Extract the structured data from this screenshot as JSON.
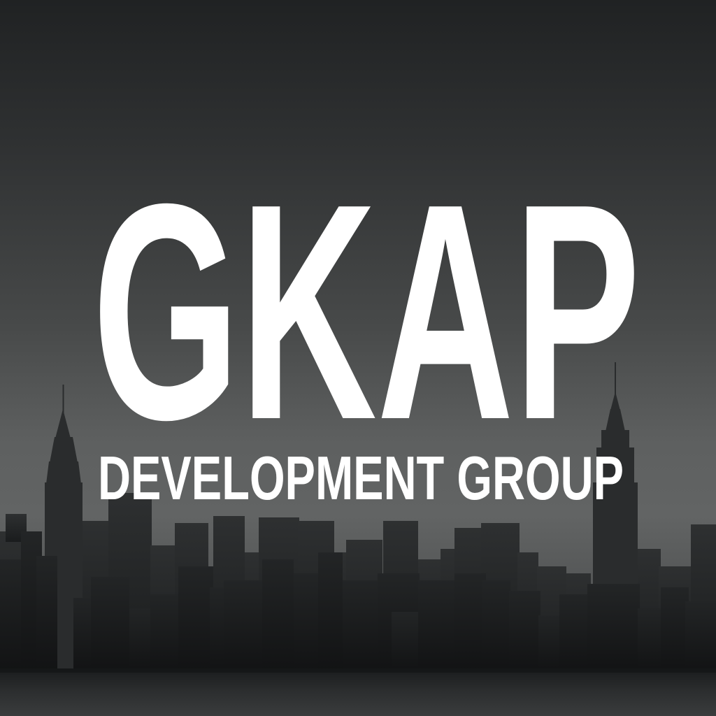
{
  "brand": {
    "name": "GKAP",
    "tagline": "DEVELOPMENT GROUP"
  },
  "colors": {
    "text": "#ffffff",
    "sky_top": "#202223",
    "sky_horizon": "#626464",
    "buildings": "#1b1d1e"
  }
}
